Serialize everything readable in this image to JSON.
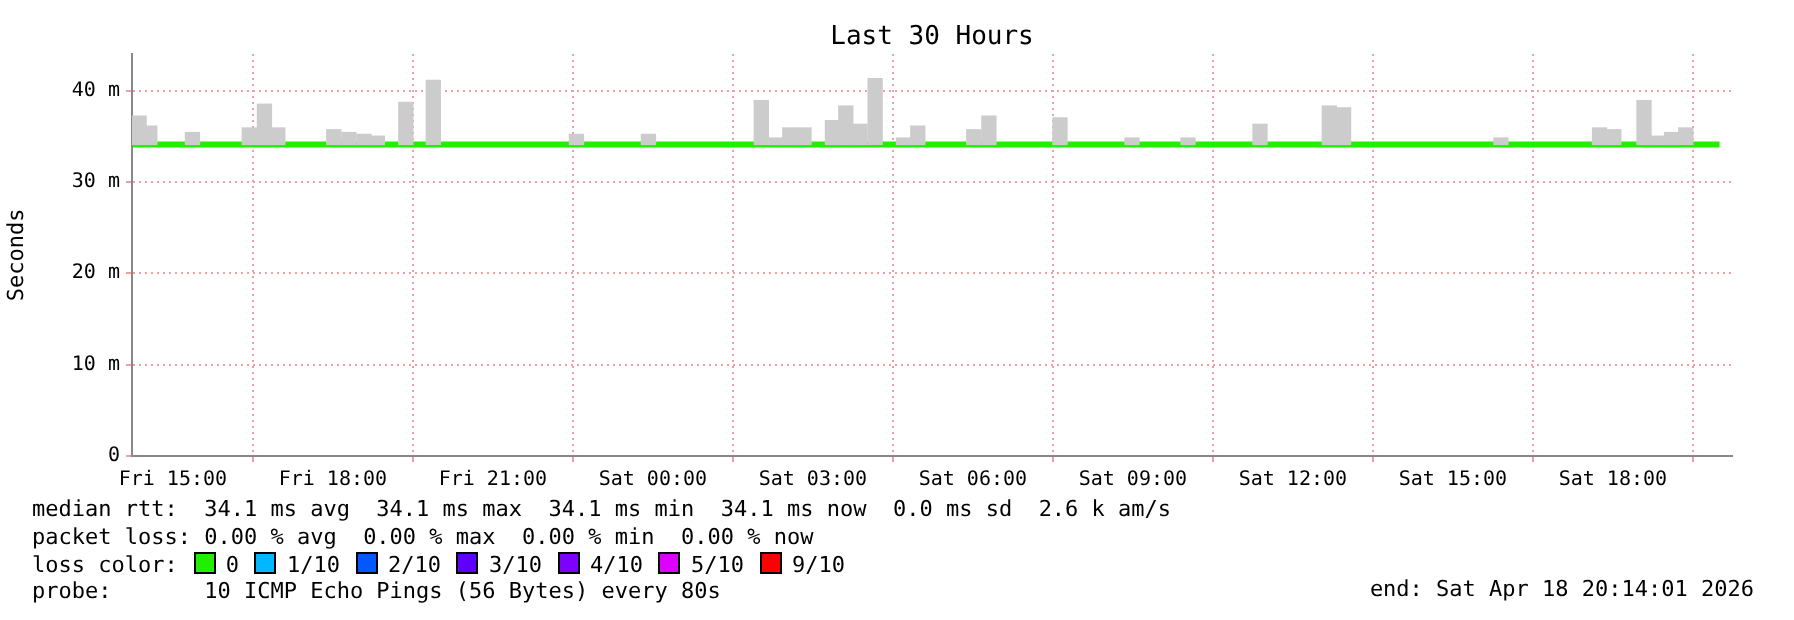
{
  "chart_data": {
    "type": "line",
    "title": "Last 30 Hours",
    "ylabel": "Seconds",
    "legend_title": "loss color:",
    "legend": "bottom",
    "grid": true,
    "marker": "none",
    "xlim": [
      "2026-04-17T14:14",
      "2026-04-18T20:14"
    ],
    "xticks": [
      {
        "value": "2026-04-17T15:00",
        "label": "Fri 15:00"
      },
      {
        "value": "2026-04-17T18:00",
        "label": "Fri 18:00"
      },
      {
        "value": "2026-04-17T21:00",
        "label": "Fri 21:00"
      },
      {
        "value": "2026-04-18T00:00",
        "label": "Sat 00:00"
      },
      {
        "value": "2026-04-18T03:00",
        "label": "Sat 03:00"
      },
      {
        "value": "2026-04-18T06:00",
        "label": "Sat 06:00"
      },
      {
        "value": "2026-04-18T09:00",
        "label": "Sat 09:00"
      },
      {
        "value": "2026-04-18T12:00",
        "label": "Sat 12:00"
      },
      {
        "value": "2026-04-18T15:00",
        "label": "Sat 15:00"
      },
      {
        "value": "2026-04-18T18:00",
        "label": "Sat 18:00"
      }
    ],
    "ylim": [
      0,
      44
    ],
    "yticks": [
      0,
      {
        "value": 10,
        "label": "10 m"
      },
      {
        "value": 20,
        "label": "20 m"
      },
      {
        "value": 30,
        "label": "30 m"
      },
      {
        "value": 40,
        "label": "40 m"
      }
    ],
    "series": [
      {
        "type": "bar",
        "color": "#cccccc",
        "x": [
          "2026-04-17T14:22",
          "2026-04-17T14:34",
          "2026-04-17T15:22",
          "2026-04-17T16:26",
          "2026-04-17T16:43",
          "2026-04-17T16:58",
          "2026-04-17T18:01",
          "2026-04-17T18:18",
          "2026-04-17T18:35",
          "2026-04-17T18:50",
          "2026-04-17T19:22",
          "2026-04-17T19:53",
          "2026-04-17T22:34",
          "2026-04-17T23:55",
          "2026-04-18T02:02",
          "2026-04-18T02:19",
          "2026-04-18T02:34",
          "2026-04-18T02:50",
          "2026-04-18T03:22",
          "2026-04-18T03:37",
          "2026-04-18T03:53",
          "2026-04-18T04:10",
          "2026-04-18T04:42",
          "2026-04-18T04:58",
          "2026-04-18T06:01",
          "2026-04-18T06:18",
          "2026-04-18T07:38",
          "2026-04-18T08:59",
          "2026-04-18T10:02",
          "2026-04-18T11:23",
          "2026-04-18T12:41",
          "2026-04-18T12:57",
          "2026-04-18T15:54",
          "2026-04-18T17:45",
          "2026-04-18T18:01",
          "2026-04-18T18:35",
          "2026-04-18T18:50",
          "2026-04-18T19:06",
          "2026-04-18T19:22"
        ],
        "base": [
          34.1,
          34.1,
          34.1,
          34.1,
          34.1,
          34.1,
          34.1,
          34.1,
          34.1,
          34.1,
          34.1,
          34.1,
          34.1,
          34.1,
          34.1,
          34.1,
          34.1,
          34.1,
          34.1,
          34.1,
          34.1,
          34.1,
          34.1,
          34.1,
          34.1,
          34.1,
          34.1,
          34.1,
          34.1,
          34.1,
          34.1,
          34.1,
          34.1,
          34.1,
          34.1,
          34.1,
          34.1,
          34.1,
          34.1
        ],
        "values": [
          3.1,
          2.0,
          1.3,
          1.8,
          4.4,
          1.8,
          1.6,
          1.3,
          1.1,
          0.9,
          4.6,
          7.0,
          1.1,
          1.1,
          4.8,
          0.7,
          1.8,
          1.8,
          2.6,
          4.2,
          2.2,
          7.2,
          0.7,
          2.0,
          1.6,
          3.1,
          2.9,
          0.7,
          0.7,
          2.2,
          4.2,
          4.0,
          0.7,
          1.8,
          1.6,
          4.8,
          0.9,
          1.3,
          1.8
        ]
      },
      {
        "name": "0",
        "color": "#20f000",
        "x": [
          "2026-04-17T14:15",
          "2026-04-18T20:00"
        ],
        "values": [
          34.1,
          34.1
        ]
      },
      {
        "name": "1/10",
        "color": "#00b8ff"
      },
      {
        "name": "2/10",
        "color": "#0059ff"
      },
      {
        "name": "3/10",
        "color": "#5e00ff"
      },
      {
        "name": "4/10",
        "color": "#7e00ff"
      },
      {
        "name": "5/10",
        "color": "#dd00ff"
      },
      {
        "name": "9/10",
        "color": "#ff0000"
      }
    ],
    "annotations": [
      "median rtt:  34.1 ms avg  34.1 ms max  34.1 ms min  34.1 ms now  0.0 ms sd  2.6 k am/s",
      "packet loss: 0.00 % avg  0.00 % max  0.00 % min  0.00 % now",
      "probe:       10 ICMP Echo Pings (56 Bytes) every 80s",
      "end: Sat Apr 18 20:14:01 2026"
    ]
  }
}
